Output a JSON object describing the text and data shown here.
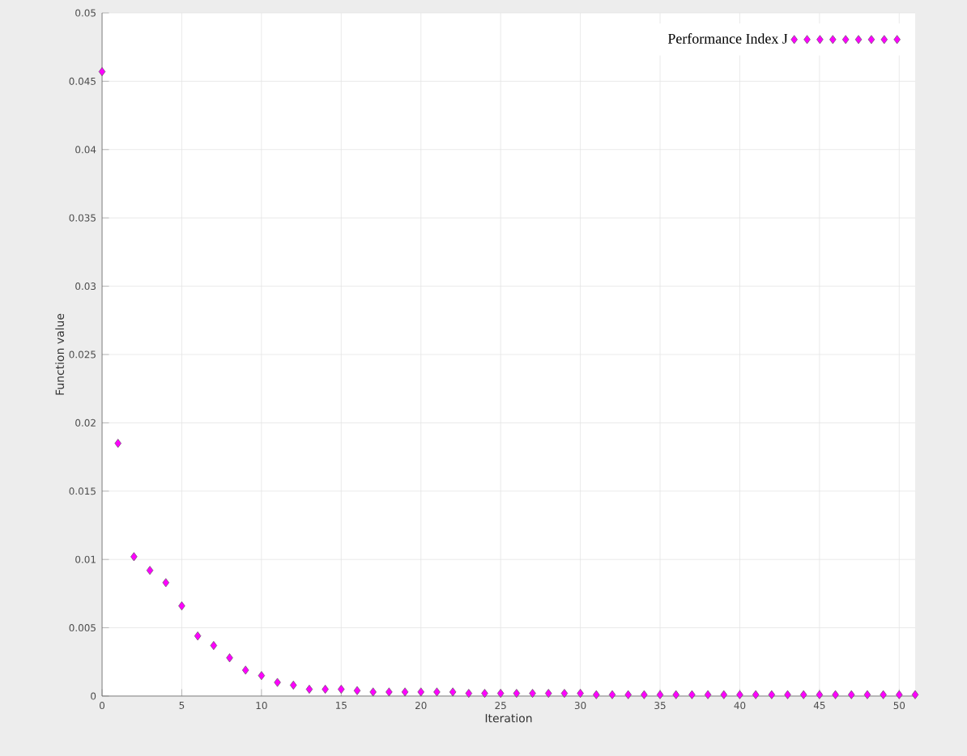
{
  "chart_data": {
    "type": "scatter",
    "xlabel": "Iteration",
    "ylabel": "Function value",
    "x": [
      0,
      1,
      2,
      3,
      4,
      5,
      6,
      7,
      8,
      9,
      10,
      11,
      12,
      13,
      14,
      15,
      16,
      17,
      18,
      19,
      20,
      21,
      22,
      23,
      24,
      25,
      26,
      27,
      28,
      29,
      30,
      31,
      32,
      33,
      34,
      35,
      36,
      37,
      38,
      39,
      40,
      41,
      42,
      43,
      44,
      45,
      46,
      47,
      48,
      49,
      50,
      51
    ],
    "series": [
      {
        "name": "Performance Index J",
        "color": "#ff00ff",
        "values": [
          0.0457,
          0.0185,
          0.0102,
          0.0092,
          0.0083,
          0.0066,
          0.0044,
          0.0037,
          0.0028,
          0.0019,
          0.0015,
          0.001,
          0.0008,
          0.0005,
          0.0005,
          0.0005,
          0.0004,
          0.0003,
          0.0003,
          0.0003,
          0.0003,
          0.0003,
          0.0003,
          0.0002,
          0.0002,
          0.0002,
          0.0002,
          0.0002,
          0.0002,
          0.0002,
          0.0002,
          0.0001,
          0.0001,
          0.0001,
          0.0001,
          0.0001,
          0.0001,
          0.0001,
          0.0001,
          0.0001,
          0.0001,
          0.0001,
          0.0001,
          0.0001,
          0.0001,
          0.0001,
          0.0001,
          0.0001,
          0.0001,
          0.0001,
          0.0001,
          0.0001
        ]
      }
    ],
    "xlim": [
      0,
      51
    ],
    "ylim": [
      0,
      0.05
    ],
    "xticks": [
      0,
      5,
      10,
      15,
      20,
      25,
      30,
      35,
      40,
      45,
      50
    ],
    "yticks": [
      0,
      0.005,
      0.01,
      0.015,
      0.02,
      0.025,
      0.03,
      0.035,
      0.04,
      0.045,
      0.05
    ],
    "grid": true,
    "legend": "top right",
    "marker": "diamond"
  }
}
